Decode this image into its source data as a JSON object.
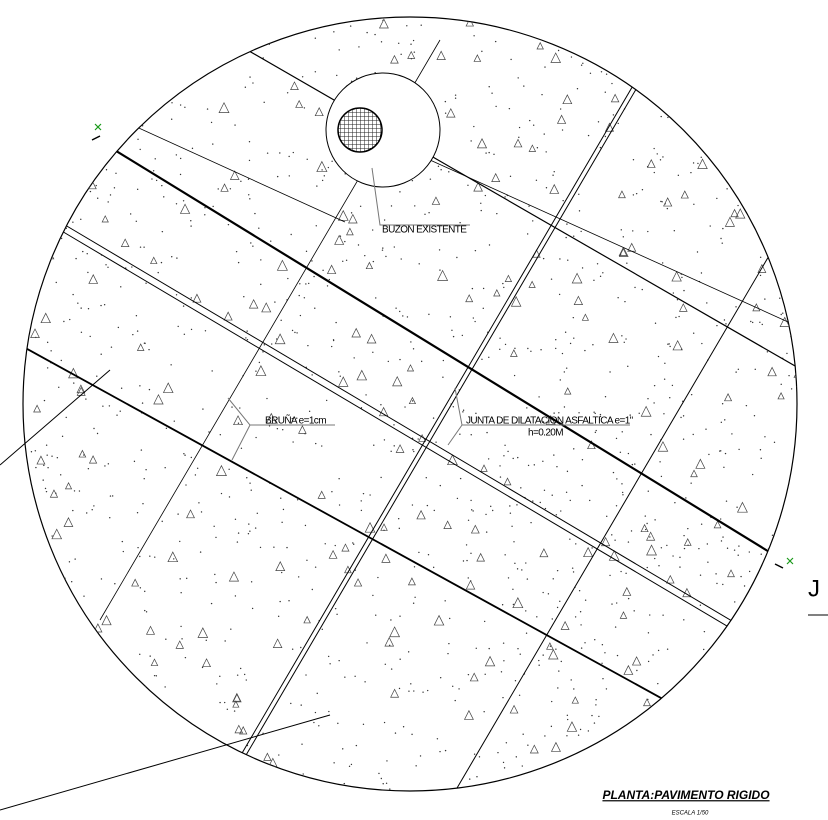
{
  "labels": {
    "manhole": "BUZON EXISTENTE",
    "groove": "BRUÑA e=1cm",
    "joint": "JUNTA DE DILATACION ASFALTICA e=1\"",
    "thickness": "h=0.20M",
    "edge_letter": "J"
  },
  "footer": {
    "title": "PLANTA:PAVIMENTO RIGIDO",
    "scale": "ESCALA 1/50"
  }
}
